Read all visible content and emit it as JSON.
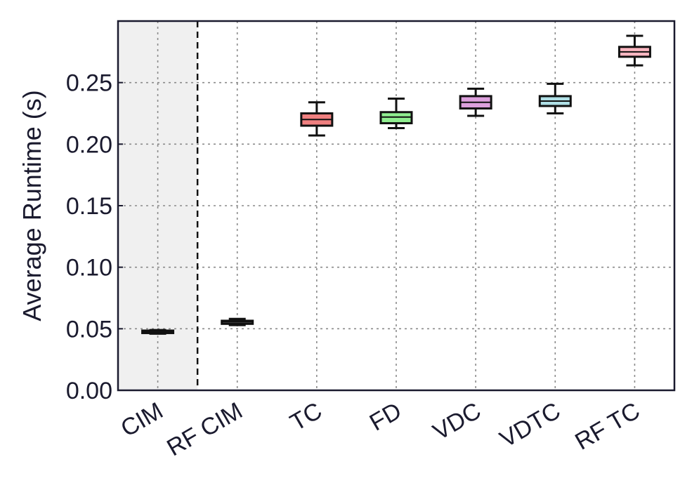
{
  "chart_data": {
    "type": "box",
    "ylabel": "Average Runtime (s)",
    "xlabel": "",
    "ylim": [
      0,
      0.3
    ],
    "yticks": [
      "0.00",
      "0.05",
      "0.10",
      "0.15",
      "0.20",
      "0.25"
    ],
    "grid": true,
    "shaded_categories": [
      "CIM"
    ],
    "categories": [
      "CIM",
      "RF CIM",
      "TC",
      "FD",
      "VDC",
      "VDTC",
      "RF TC"
    ],
    "series": [
      {
        "category": "CIM",
        "color": "#ffffff",
        "whisker_low": 0.046,
        "q1": 0.0465,
        "median": 0.0475,
        "q3": 0.0485,
        "whisker_high": 0.049
      },
      {
        "category": "RF CIM",
        "color": "#ffffff",
        "whisker_low": 0.053,
        "q1": 0.054,
        "median": 0.0555,
        "q3": 0.0565,
        "whisker_high": 0.058
      },
      {
        "category": "TC",
        "color": "#f08080",
        "whisker_low": 0.207,
        "q1": 0.215,
        "median": 0.22,
        "q3": 0.225,
        "whisker_high": 0.234
      },
      {
        "category": "FD",
        "color": "#90ee90",
        "whisker_low": 0.213,
        "q1": 0.217,
        "median": 0.222,
        "q3": 0.226,
        "whisker_high": 0.237
      },
      {
        "category": "VDC",
        "color": "#dda0dd",
        "whisker_low": 0.223,
        "q1": 0.229,
        "median": 0.234,
        "q3": 0.239,
        "whisker_high": 0.245
      },
      {
        "category": "VDTC",
        "color": "#b0e0e6",
        "whisker_low": 0.225,
        "q1": 0.231,
        "median": 0.235,
        "q3": 0.239,
        "whisker_high": 0.249
      },
      {
        "category": "RF TC",
        "color": "#ffb6c1",
        "whisker_low": 0.264,
        "q1": 0.271,
        "median": 0.275,
        "q3": 0.279,
        "whisker_high": 0.288
      }
    ]
  }
}
